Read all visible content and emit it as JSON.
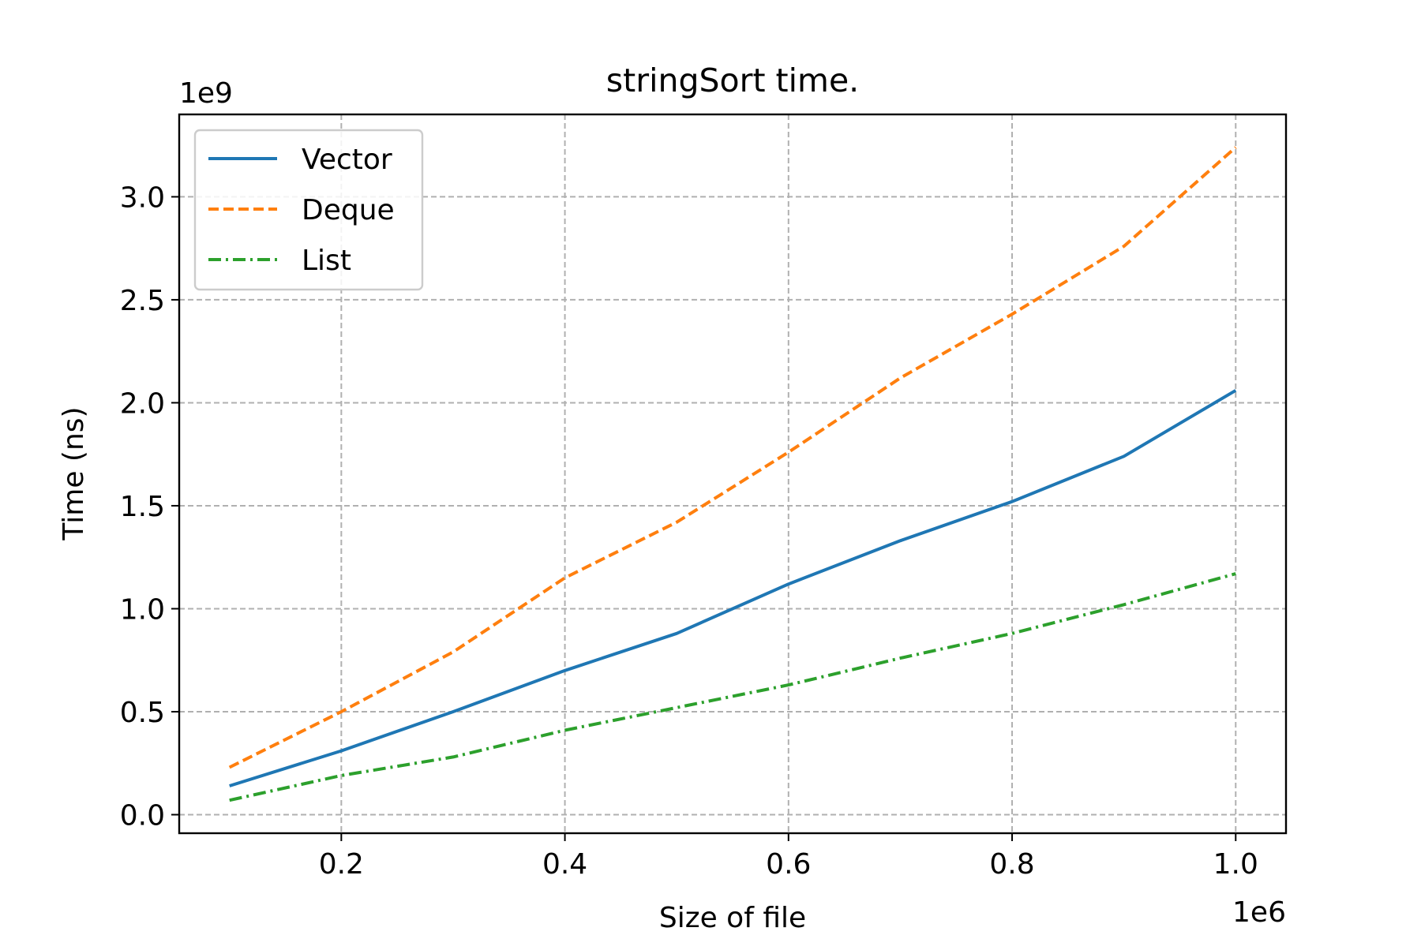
{
  "chart_data": {
    "type": "line",
    "title": "stringSort time.",
    "xlabel": "Size of file",
    "ylabel": "Time (ns)",
    "x_offset_text": "1e6",
    "y_offset_text": "1e9",
    "x_scale": 1000000,
    "y_scale": 1000000000,
    "xlim": [
      0.055,
      1.045
    ],
    "ylim": [
      -0.09,
      3.4
    ],
    "xticks": [
      0.2,
      0.4,
      0.6,
      0.8,
      1.0
    ],
    "xtick_labels": [
      "0.2",
      "0.4",
      "0.6",
      "0.8",
      "1.0"
    ],
    "yticks": [
      0.0,
      0.5,
      1.0,
      1.5,
      2.0,
      2.5,
      3.0
    ],
    "ytick_labels": [
      "0.0",
      "0.5",
      "1.0",
      "1.5",
      "2.0",
      "2.5",
      "3.0"
    ],
    "grid": true,
    "legend_position": "upper-left",
    "x": [
      0.1,
      0.2,
      0.3,
      0.4,
      0.5,
      0.6,
      0.7,
      0.8,
      0.9,
      1.0
    ],
    "series": [
      {
        "name": "Vector",
        "color": "#1f77b4",
        "style": "solid",
        "values": [
          0.14,
          0.31,
          0.5,
          0.7,
          0.88,
          1.12,
          1.33,
          1.52,
          1.74,
          2.06
        ]
      },
      {
        "name": "Deque",
        "color": "#ff7f0e",
        "style": "dashed",
        "values": [
          0.23,
          0.5,
          0.79,
          1.15,
          1.42,
          1.76,
          2.12,
          2.43,
          2.76,
          3.24
        ]
      },
      {
        "name": "List",
        "color": "#2ca02c",
        "style": "dashdot",
        "values": [
          0.07,
          0.19,
          0.28,
          0.41,
          0.52,
          0.63,
          0.76,
          0.88,
          1.02,
          1.17
        ]
      }
    ]
  }
}
